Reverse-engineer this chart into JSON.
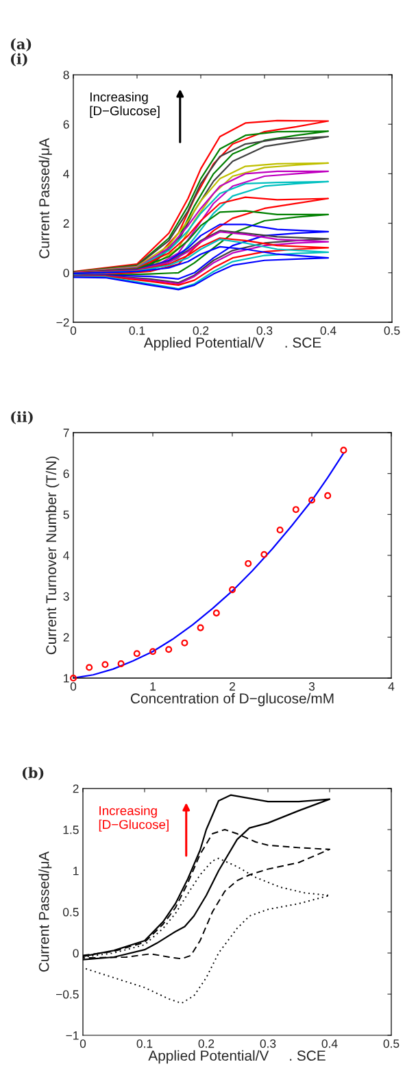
{
  "chart_data": [
    {
      "type": "line",
      "title": "(a)\n(i)",
      "xlabel": "Applied Potential/V     . SCE",
      "ylabel": "Current Passed/μA",
      "xlim": [
        0,
        0.5
      ],
      "xticks": [
        0,
        0.1,
        0.2,
        0.3,
        0.4,
        0.5
      ],
      "ylim": [
        -2,
        8
      ],
      "yticks": [
        -2,
        0,
        2,
        4,
        6,
        8
      ],
      "annotations": [
        "Increasing\n[D−Glucose]"
      ],
      "legend": false,
      "grid": false,
      "line_style": "solid",
      "x": [
        0,
        0.1,
        0.15,
        0.18,
        0.2,
        0.23,
        0.27,
        0.32,
        0.4,
        0.35,
        0.3,
        0.25,
        0.22,
        0.19,
        0.165,
        0.12,
        0.05,
        0
      ],
      "series": [
        {
          "color": "#ff0000",
          "values": [
            0.05,
            0.35,
            1.6,
            3.0,
            4.2,
            5.5,
            6.05,
            6.15,
            6.13,
            5.9,
            5.7,
            5.2,
            4.4,
            3.0,
            1.6,
            0.35,
            0,
            -0.05
          ]
        },
        {
          "color": "#008000",
          "values": [
            0.03,
            0.3,
            1.4,
            2.7,
            3.8,
            5.0,
            5.55,
            5.7,
            5.72,
            5.55,
            5.35,
            4.8,
            4.0,
            2.7,
            1.4,
            0.3,
            -0.02,
            -0.07
          ]
        },
        {
          "color": "#404040",
          "values": [
            0.02,
            0.28,
            1.3,
            2.5,
            3.6,
            4.7,
            5.2,
            5.4,
            5.5,
            5.3,
            5.1,
            4.5,
            3.7,
            2.5,
            1.3,
            0.25,
            -0.03,
            -0.08
          ]
        },
        {
          "color": "#bfbf00",
          "values": [
            0.02,
            0.25,
            1.1,
            2.1,
            2.9,
            3.8,
            4.3,
            4.4,
            4.43,
            4.35,
            4.25,
            3.9,
            3.2,
            2.1,
            1.0,
            0.2,
            -0.05,
            -0.1
          ]
        },
        {
          "color": "#bf00bf",
          "values": [
            0.01,
            0.22,
            1.0,
            1.9,
            2.6,
            3.5,
            4.0,
            4.1,
            4.1,
            4.0,
            3.9,
            3.5,
            2.8,
            1.7,
            0.8,
            0.15,
            -0.06,
            -0.1
          ]
        },
        {
          "color": "#00bfbf",
          "values": [
            0,
            0.2,
            0.9,
            1.7,
            2.4,
            3.2,
            3.6,
            3.65,
            3.68,
            3.6,
            3.5,
            3.1,
            2.4,
            1.4,
            0.6,
            0.1,
            -0.07,
            -0.1
          ]
        },
        {
          "color": "#ff0000",
          "values": [
            0,
            0.18,
            0.8,
            1.5,
            2.1,
            2.8,
            3.05,
            2.95,
            3.0,
            2.8,
            2.6,
            2.2,
            1.7,
            1.0,
            0.35,
            0.05,
            -0.08,
            -0.12
          ]
        },
        {
          "color": "#008000",
          "values": [
            0,
            0.15,
            0.65,
            1.3,
            1.9,
            2.45,
            2.5,
            2.35,
            2.35,
            2.25,
            2.1,
            1.6,
            1.0,
            0.4,
            0.0,
            -0.05,
            -0.1,
            -0.12
          ]
        },
        {
          "color": "#0000ff",
          "values": [
            0,
            0.12,
            0.5,
            1.0,
            1.5,
            1.95,
            1.95,
            1.75,
            1.66,
            1.6,
            1.5,
            1.1,
            0.6,
            0.0,
            -0.25,
            -0.15,
            -0.1,
            -0.12
          ]
        },
        {
          "color": "#404040",
          "values": [
            0,
            0.1,
            0.45,
            0.9,
            1.3,
            1.7,
            1.6,
            1.45,
            1.37,
            1.3,
            1.2,
            0.9,
            0.5,
            -0.1,
            -0.4,
            -0.25,
            -0.12,
            -0.13
          ]
        },
        {
          "color": "#bf00bf",
          "values": [
            0,
            0.1,
            0.42,
            0.85,
            1.25,
            1.65,
            1.55,
            1.35,
            1.25,
            1.2,
            1.1,
            0.8,
            0.4,
            -0.15,
            -0.45,
            -0.3,
            -0.13,
            -0.14
          ]
        },
        {
          "color": "#ff0000",
          "values": [
            0,
            0.09,
            0.35,
            0.7,
            1.05,
            1.4,
            1.3,
            1.1,
            1.01,
            0.95,
            0.85,
            0.6,
            0.2,
            -0.3,
            -0.5,
            -0.35,
            -0.14,
            -0.15
          ]
        },
        {
          "color": "#00bfbf",
          "values": [
            -0.02,
            0.07,
            0.3,
            0.6,
            0.95,
            1.35,
            1.2,
            0.95,
            0.83,
            0.78,
            0.7,
            0.45,
            0.05,
            -0.45,
            -0.65,
            -0.45,
            -0.17,
            -0.16
          ]
        },
        {
          "color": "#0000ff",
          "values": [
            -0.03,
            0.05,
            0.2,
            0.45,
            0.75,
            1.05,
            0.95,
            0.75,
            0.6,
            0.55,
            0.5,
            0.3,
            -0.05,
            -0.5,
            -0.68,
            -0.5,
            -0.2,
            -0.18
          ]
        }
      ]
    },
    {
      "type": "scatter",
      "title": "(ii)",
      "xlabel": "Concentration of D−glucose/mM",
      "ylabel": "Current Turnover Number (T/N)",
      "xlim": [
        0,
        4
      ],
      "xticks": [
        0,
        1,
        2,
        3,
        4
      ],
      "ylim": [
        1,
        7
      ],
      "yticks": [
        1,
        2,
        3,
        4,
        5,
        6,
        7
      ],
      "legend": false,
      "grid": false,
      "series": [
        {
          "type": "scatter",
          "color": "#ff0000",
          "marker": "circle",
          "x": [
            0,
            0.2,
            0.4,
            0.6,
            0.8,
            1.0,
            1.2,
            1.4,
            1.6,
            1.8,
            2.0,
            2.2,
            2.4,
            2.6,
            2.8,
            3.0,
            3.2,
            3.4
          ],
          "values": [
            1.0,
            1.26,
            1.33,
            1.35,
            1.6,
            1.65,
            1.7,
            1.86,
            2.23,
            2.59,
            3.16,
            3.8,
            4.02,
            4.62,
            5.12,
            5.35,
            5.46,
            6.57
          ]
        },
        {
          "type": "line",
          "color": "#0000ff",
          "line_style": "solid",
          "x": [
            0,
            0.25,
            0.5,
            0.75,
            1.0,
            1.25,
            1.5,
            1.75,
            2.0,
            2.25,
            2.5,
            2.75,
            3.0,
            3.2,
            3.4
          ],
          "values": [
            1.0,
            1.08,
            1.22,
            1.42,
            1.65,
            1.95,
            2.3,
            2.7,
            3.13,
            3.62,
            4.15,
            4.73,
            5.34,
            5.9,
            6.5
          ]
        }
      ]
    },
    {
      "type": "line",
      "title": "(b)",
      "xlabel": "Applied Potential/V     . SCE",
      "ylabel": "Current Passed/μA",
      "xlim": [
        0,
        0.5
      ],
      "xticks": [
        0,
        0.1,
        0.2,
        0.3,
        0.4,
        0.5
      ],
      "ylim": [
        -1,
        2
      ],
      "yticks": [
        -1,
        -0.5,
        0,
        0.5,
        1,
        1.5,
        2
      ],
      "annotations": [
        "Increasing\n[D−Glucose]"
      ],
      "legend": false,
      "grid": false,
      "series": [
        {
          "color": "#000000",
          "line_style": "solid",
          "x": [
            0,
            0.05,
            0.1,
            0.13,
            0.15,
            0.17,
            0.19,
            0.2,
            0.22,
            0.24,
            0.3,
            0.35,
            0.4,
            0.35,
            0.3,
            0.27,
            0.25,
            0.22,
            0.2,
            0.18,
            0.165,
            0.15,
            0.12,
            0.1,
            0.05,
            0
          ],
          "values": [
            -0.04,
            0.03,
            0.15,
            0.38,
            0.6,
            0.9,
            1.25,
            1.5,
            1.85,
            1.92,
            1.84,
            1.84,
            1.87,
            1.73,
            1.58,
            1.52,
            1.38,
            1.0,
            0.7,
            0.45,
            0.32,
            0.26,
            0.12,
            0.04,
            -0.05,
            -0.08
          ]
        },
        {
          "color": "#000000",
          "line_style": "dashed",
          "x": [
            0,
            0.05,
            0.1,
            0.13,
            0.15,
            0.17,
            0.19,
            0.21,
            0.23,
            0.25,
            0.28,
            0.3,
            0.35,
            0.4,
            0.35,
            0.3,
            0.27,
            0.25,
            0.23,
            0.21,
            0.19,
            0.175,
            0.16,
            0.14,
            0.11,
            0.07,
            0
          ],
          "values": [
            -0.03,
            0.02,
            0.13,
            0.35,
            0.55,
            0.85,
            1.2,
            1.45,
            1.5,
            1.45,
            1.35,
            1.31,
            1.28,
            1.26,
            1.1,
            1.02,
            0.95,
            0.88,
            0.75,
            0.5,
            0.15,
            -0.03,
            -0.07,
            -0.05,
            -0.01,
            -0.05,
            -0.06
          ]
        },
        {
          "color": "#000000",
          "line_style": "dotted",
          "x": [
            0,
            0.05,
            0.1,
            0.13,
            0.15,
            0.17,
            0.19,
            0.21,
            0.22,
            0.25,
            0.28,
            0.32,
            0.36,
            0.4,
            0.35,
            0.3,
            0.27,
            0.25,
            0.22,
            0.2,
            0.18,
            0.16,
            0.14,
            0.1,
            0.05,
            0
          ],
          "values": [
            -0.05,
            0.0,
            0.1,
            0.3,
            0.48,
            0.72,
            0.95,
            1.12,
            1.15,
            1.05,
            0.92,
            0.8,
            0.73,
            0.7,
            0.6,
            0.53,
            0.45,
            0.3,
            0.0,
            -0.3,
            -0.52,
            -0.61,
            -0.56,
            -0.42,
            -0.3,
            -0.18
          ]
        }
      ]
    }
  ]
}
